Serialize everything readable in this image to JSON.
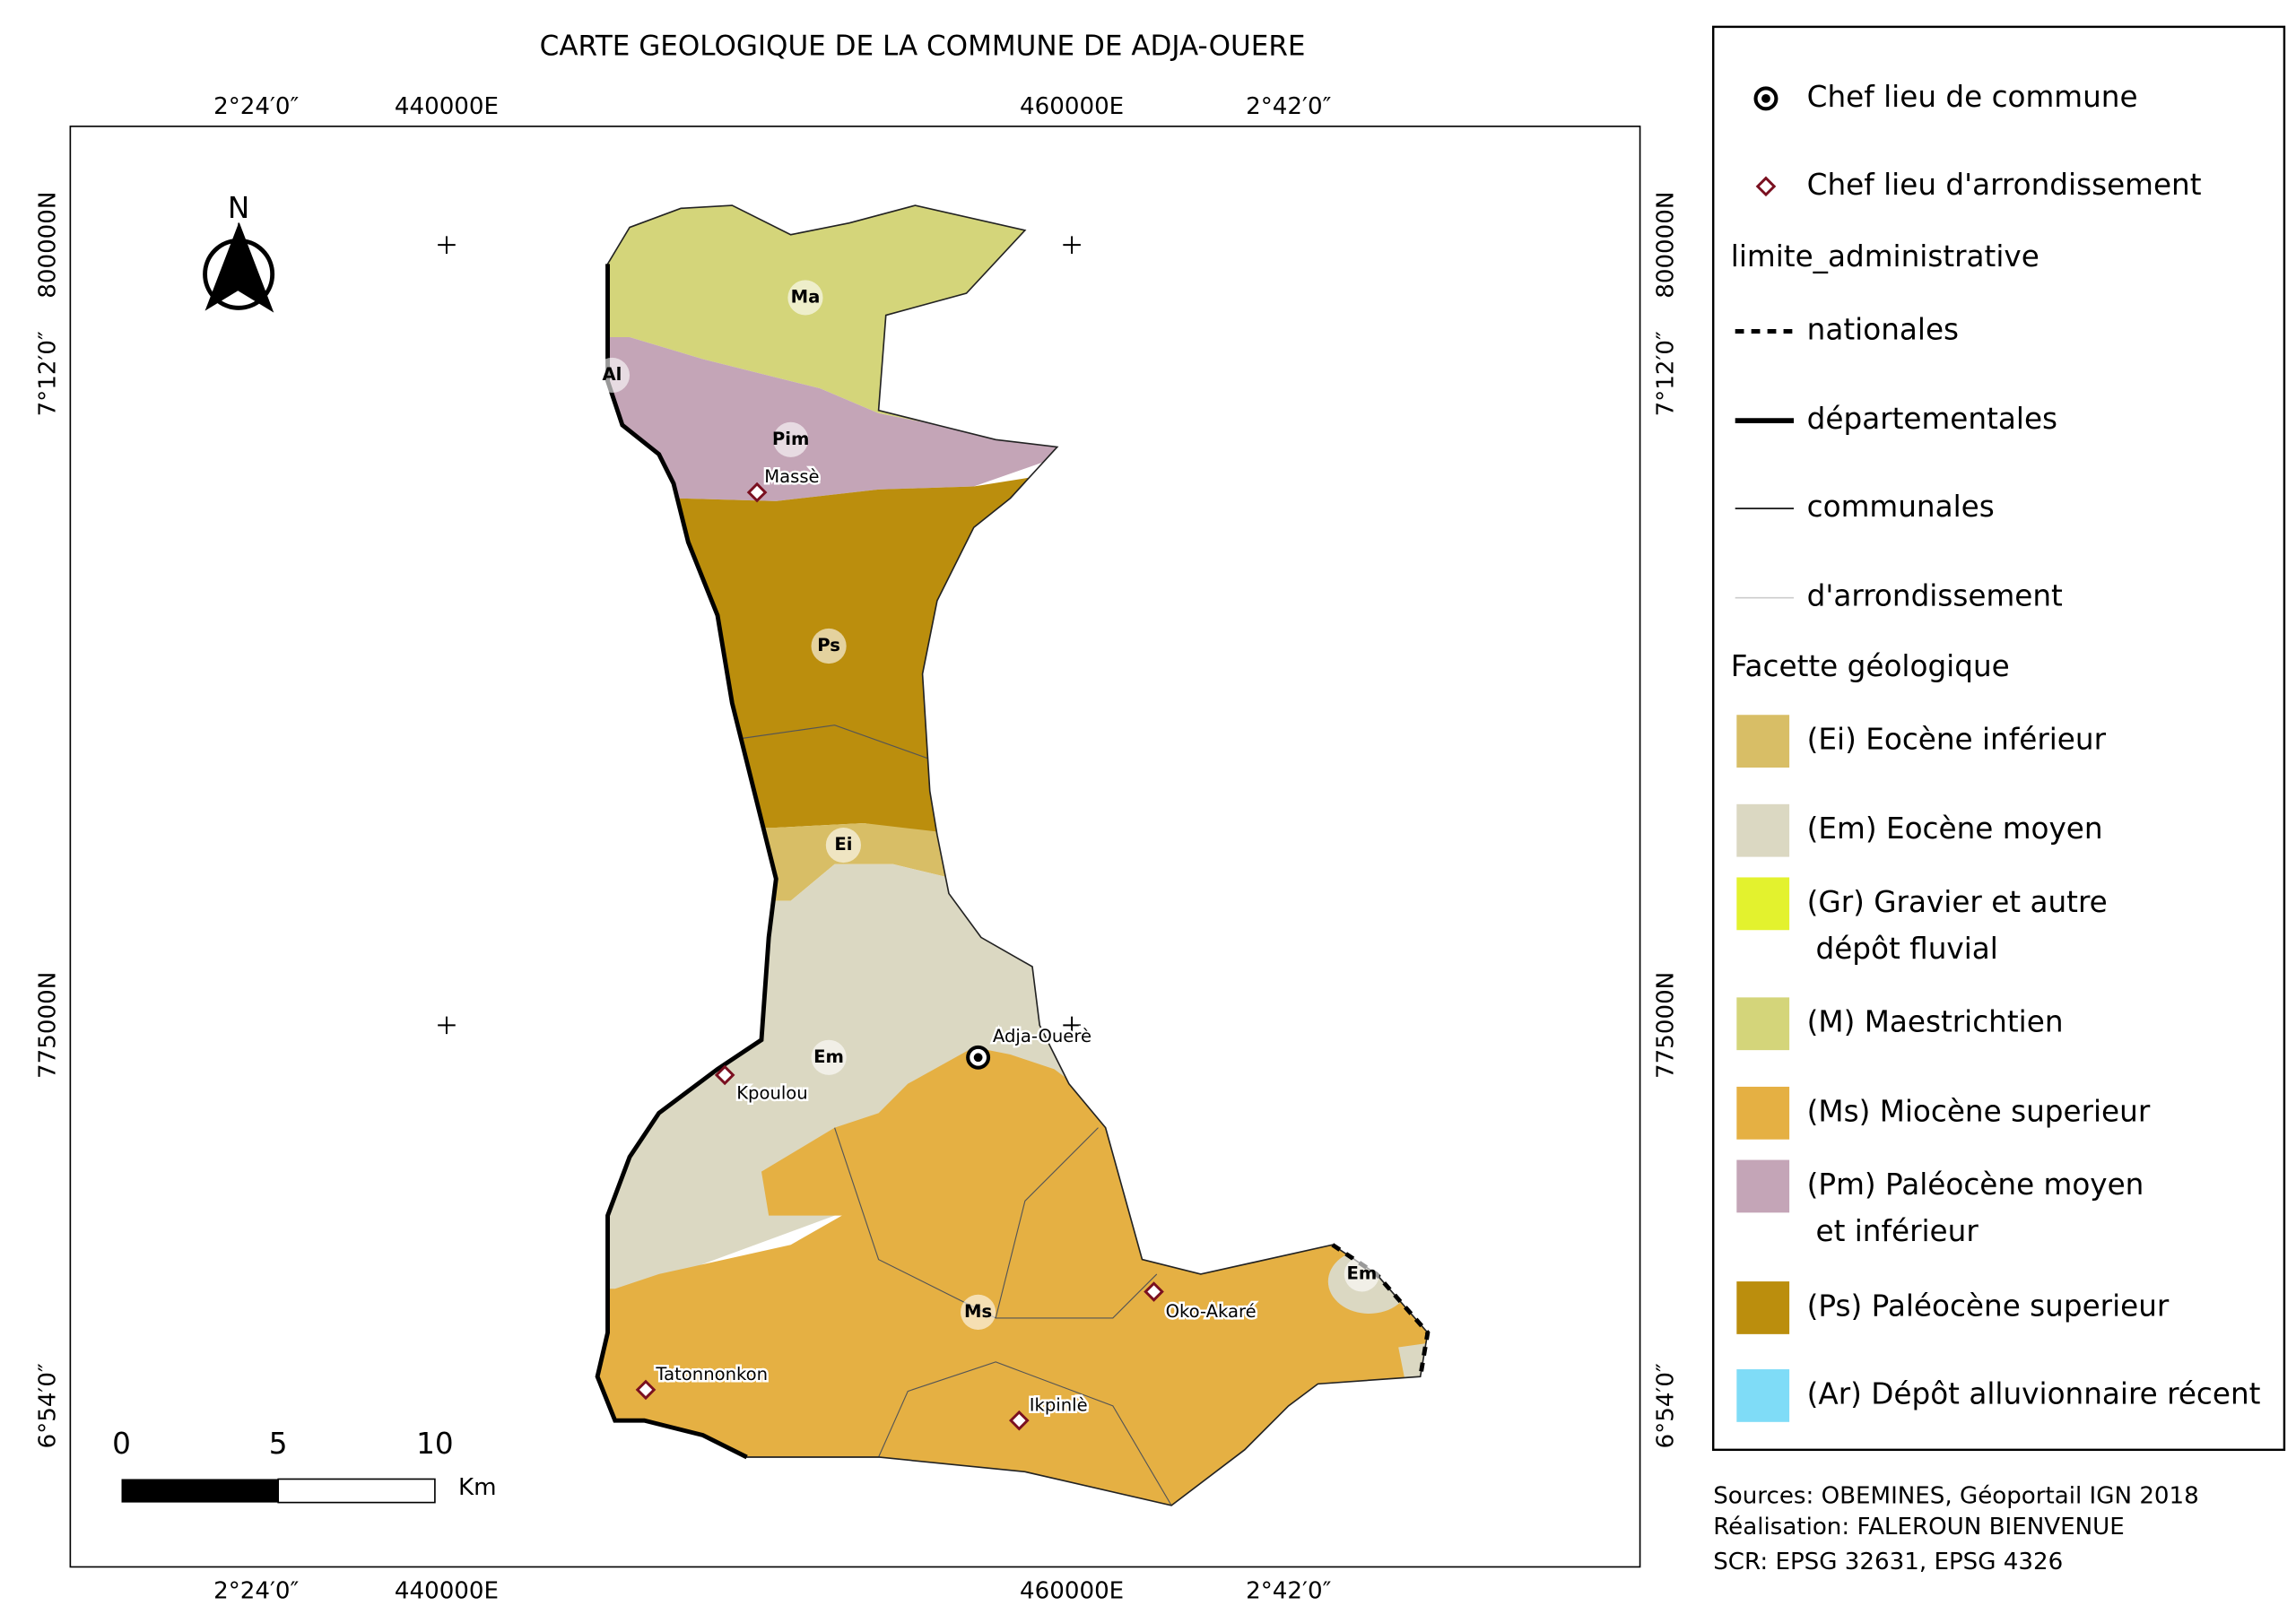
{
  "title": "CARTE GEOLOGIQUE DE LA COMMUNE DE ADJA-OUERE",
  "grid_labels": {
    "top": [
      "2°24′0″",
      "440000E",
      "460000E",
      "2°42′0″"
    ],
    "bottom": [
      "2°24′0″",
      "440000E",
      "460000E",
      "2°42′0″"
    ],
    "left": [
      "800000N",
      "7°12′0″",
      "775000N",
      "6°54′0″"
    ],
    "right": [
      "800000N",
      "7°12′0″",
      "775000N",
      "6°54′0″"
    ]
  },
  "north_arrow": "N",
  "unit_labels": [
    "Ma",
    "Al",
    "Pim",
    "Ps",
    "Ei",
    "Em",
    "Ms",
    "Em"
  ],
  "places": [
    "Massè",
    "Adja-Ouerè",
    "Kpoulou",
    "Oko-Akaré",
    "Tatonnonkon",
    "Ikpinlè"
  ],
  "scale_bar": {
    "ticks": [
      0,
      5,
      10
    ],
    "unit": "Km"
  },
  "legend": {
    "items": [
      "Chef lieu de commune",
      "Chef lieu d'arrondissement"
    ],
    "boundary_heading": "limite_administrative",
    "boundaries": [
      "nationales",
      "départementales",
      "communales",
      "d'arrondissement"
    ],
    "geology_heading": "Facette géologique",
    "geology": [
      {
        "lines": [
          "(Ei) Eocène inférieur"
        ],
        "color": "#d8be66"
      },
      {
        "lines": [
          "(Em) Eocène moyen"
        ],
        "color": "#dbd8c2"
      },
      {
        "lines": [
          "(Gr) Gravier et autre",
          "dépôt fluvial"
        ],
        "color": "#e3f22e"
      },
      {
        "lines": [
          "(M) Maestrichtien"
        ],
        "color": "#d4d57a"
      },
      {
        "lines": [
          "(Ms) Miocène superieur"
        ],
        "color": "#e5b043"
      },
      {
        "lines": [
          "(Pm) Paléocène moyen",
          "et inférieur"
        ],
        "color": "#c4a5b7"
      },
      {
        "lines": [
          "(Ps) Paléocène superieur"
        ],
        "color": "#bb8e0d"
      },
      {
        "lines": [
          "(Ar) Dépôt alluvionnaire récent"
        ],
        "color": "#7fdcf7"
      }
    ]
  },
  "credits": [
    "Sources: OBEMINES, Géoportail IGN 2018",
    "Réalisation: FALEROUN BIENVENUE",
    "SCR: EPSG 32631, EPSG 4326"
  ]
}
